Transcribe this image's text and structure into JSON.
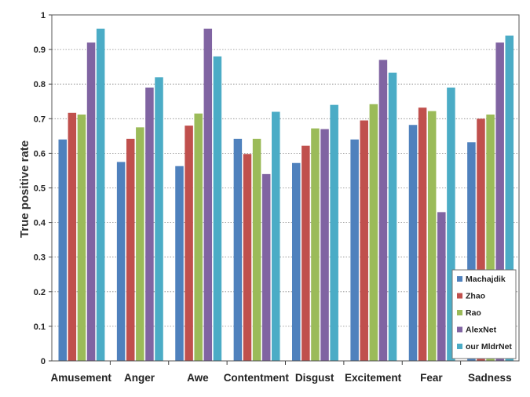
{
  "chart_data": {
    "type": "bar",
    "ylabel": "True positive rate",
    "xlabel": "",
    "ylim": [
      0,
      1
    ],
    "yticks": [
      0,
      0.1,
      0.2,
      0.3,
      0.4,
      0.5,
      0.6,
      0.7,
      0.8,
      0.9,
      1
    ],
    "ytick_labels": [
      "0",
      "0.1",
      "0.2",
      "0.3",
      "0.4",
      "0.5",
      "0.6",
      "0.7",
      "0.8",
      "0.9",
      "1"
    ],
    "grid": "horizontal-dotted",
    "legend_position": "bottom-right",
    "categories": [
      "Amusement",
      "Anger",
      "Awe",
      "Contentment",
      "Disgust",
      "Excitement",
      "Fear",
      "Sadness"
    ],
    "series": [
      {
        "name": "Machajdik",
        "color": "#4f81bd",
        "values": [
          0.64,
          0.575,
          0.563,
          0.642,
          0.572,
          0.64,
          0.682,
          0.632
        ]
      },
      {
        "name": "Zhao",
        "color": "#c0504d",
        "values": [
          0.717,
          0.642,
          0.68,
          0.598,
          0.622,
          0.695,
          0.732,
          0.7
        ]
      },
      {
        "name": "Rao",
        "color": "#9bbb59",
        "values": [
          0.712,
          0.675,
          0.715,
          0.642,
          0.672,
          0.742,
          0.722,
          0.712
        ]
      },
      {
        "name": "AlexNet",
        "color": "#8064a2",
        "values": [
          0.92,
          0.79,
          0.96,
          0.54,
          0.67,
          0.87,
          0.43,
          0.92
        ]
      },
      {
        "name": "our MldrNet",
        "color": "#4bacc6",
        "values": [
          0.96,
          0.82,
          0.88,
          0.72,
          0.74,
          0.833,
          0.79,
          0.94
        ]
      }
    ]
  }
}
